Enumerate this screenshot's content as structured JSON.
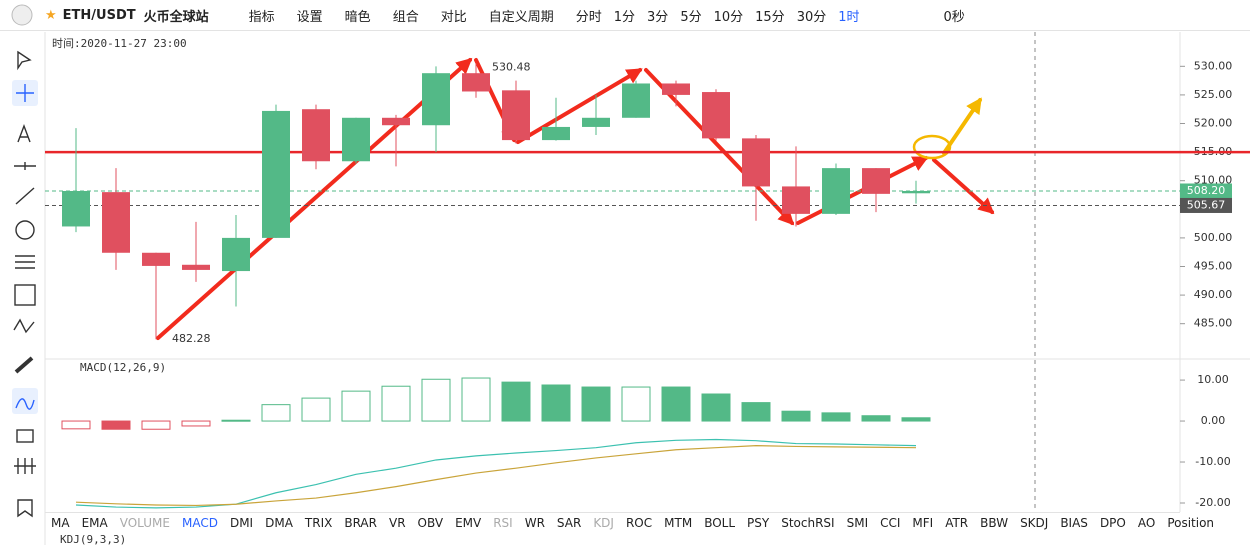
{
  "toolbar": {
    "symbol": "ETH/USDT",
    "exchange": "火币全球站",
    "buttons": [
      "指标",
      "设置",
      "暗色",
      "组合",
      "对比",
      "自定义周期"
    ],
    "intervals": [
      "分时",
      "1分",
      "3分",
      "5分",
      "10分",
      "15分",
      "30分",
      "1时"
    ],
    "active_interval": 7,
    "countdown": "0秒"
  },
  "chart_data": [
    {
      "type": "candlestick",
      "time_label": "时间:2020-11-27 23:00",
      "open": [
        502,
        508,
        497.4,
        495.3,
        494.2,
        500,
        522.5,
        513.4,
        521,
        519.7,
        528.8,
        525.8,
        517.1,
        519.4,
        521,
        527,
        525.5,
        517.4,
        509,
        504.2,
        512.2,
        507.8
      ],
      "high": [
        519.2,
        512.2,
        497.4,
        502.8,
        504,
        523.3,
        523.3,
        521,
        521.5,
        530,
        530.48,
        527.5,
        524.5,
        525,
        527.5,
        527.5,
        526,
        518,
        516,
        513,
        512.2,
        510
      ],
      "low": [
        501,
        494.4,
        482.28,
        492.3,
        488,
        500,
        512,
        513,
        512.5,
        515,
        524.5,
        516.5,
        517,
        518,
        521,
        523,
        517,
        503,
        502,
        504,
        504.5,
        506
      ],
      "close": [
        508.2,
        497.4,
        495.1,
        494.4,
        500,
        522.2,
        513.4,
        521,
        519.7,
        528.8,
        525.6,
        517.1,
        519.4,
        521,
        527,
        525,
        517.4,
        509,
        504.2,
        512.2,
        507.7,
        508.2
      ],
      "up_color": "#53b987",
      "down_color": "#e0505f",
      "ylim": [
        479,
        536
      ],
      "yticks": [
        {
          "value": 530,
          "label": "530.00"
        },
        {
          "value": 525,
          "label": "525.00"
        },
        {
          "value": 520,
          "label": "520.00"
        },
        {
          "value": 515,
          "label": "515.00"
        },
        {
          "value": 510,
          "label": "510.00"
        },
        {
          "value": 505,
          "label": "505.00"
        },
        {
          "value": 500,
          "label": "500.00"
        },
        {
          "value": 495,
          "label": "495.00"
        },
        {
          "value": 490,
          "label": "490.00"
        },
        {
          "value": 485,
          "label": "485.00"
        }
      ],
      "reference_line": {
        "value": 515,
        "color": "#e8262a"
      },
      "price_lines": [
        {
          "value": 508.2,
          "label": "508.20",
          "color": "#53b987"
        },
        {
          "value": 505.67,
          "label": "505.67",
          "color": "#555555"
        }
      ]
    },
    {
      "type": "macd",
      "title": "MACD(12,26,9)",
      "histogram": [
        -1.9,
        -2,
        -2,
        -1.2,
        0.2,
        4,
        5.6,
        7.3,
        8.5,
        10.2,
        10.5,
        9.5,
        8.8,
        8.3,
        8.3,
        8.3,
        6.6,
        4.5,
        2.4,
        2,
        1.3,
        0.8
      ],
      "hollow": [
        true,
        false,
        true,
        true,
        false,
        true,
        true,
        true,
        true,
        true,
        true,
        false,
        false,
        false,
        true,
        false,
        false,
        false,
        false,
        false,
        false,
        false
      ],
      "dif": [
        -20.5,
        -21,
        -21.2,
        -21,
        -20.3,
        -17.5,
        -15.5,
        -13,
        -11.5,
        -9.5,
        -8.5,
        -7.8,
        -7.2,
        -6.5,
        -5.3,
        -4.7,
        -4.5,
        -4.8,
        -5.5,
        -5.6,
        -5.8,
        -6
      ],
      "dea": [
        -19.8,
        -20.2,
        -20.5,
        -20.6,
        -20.3,
        -19.5,
        -18.8,
        -17.5,
        -16,
        -14.3,
        -12.7,
        -11.5,
        -10.2,
        -9,
        -8,
        -7,
        -6.5,
        -6,
        -6.2,
        -6.3,
        -6.4,
        -6.5
      ],
      "dif_color": "#3cc1b0",
      "dea_color": "#c9a43a",
      "up_color": "#53b987",
      "down_color": "#e0505f",
      "ylim": [
        -22.2,
        14.9
      ],
      "yticks": [
        {
          "value": 10,
          "label": "10.00"
        },
        {
          "value": 0,
          "label": "0.00"
        },
        {
          "value": -10,
          "label": "-10.00"
        },
        {
          "value": -20,
          "label": "-20.00"
        }
      ]
    }
  ],
  "indicator_tabs": {
    "tabs": [
      "MA",
      "EMA",
      "VOLUME",
      "MACD",
      "DMI",
      "DMA",
      "TRIX",
      "BRAR",
      "VR",
      "OBV",
      "EMV",
      "RSI",
      "WR",
      "SAR",
      "KDJ",
      "ROC",
      "MTM",
      "BOLL",
      "PSY",
      "StochRSI",
      "SMI",
      "CCI",
      "MFI",
      "ATR",
      "BBW",
      "SKDJ",
      "BIAS",
      "DPO",
      "AO",
      "Position"
    ],
    "active": 3,
    "muted": [
      2,
      11,
      14
    ]
  },
  "kdj_title": "KDJ(9,3,3)"
}
